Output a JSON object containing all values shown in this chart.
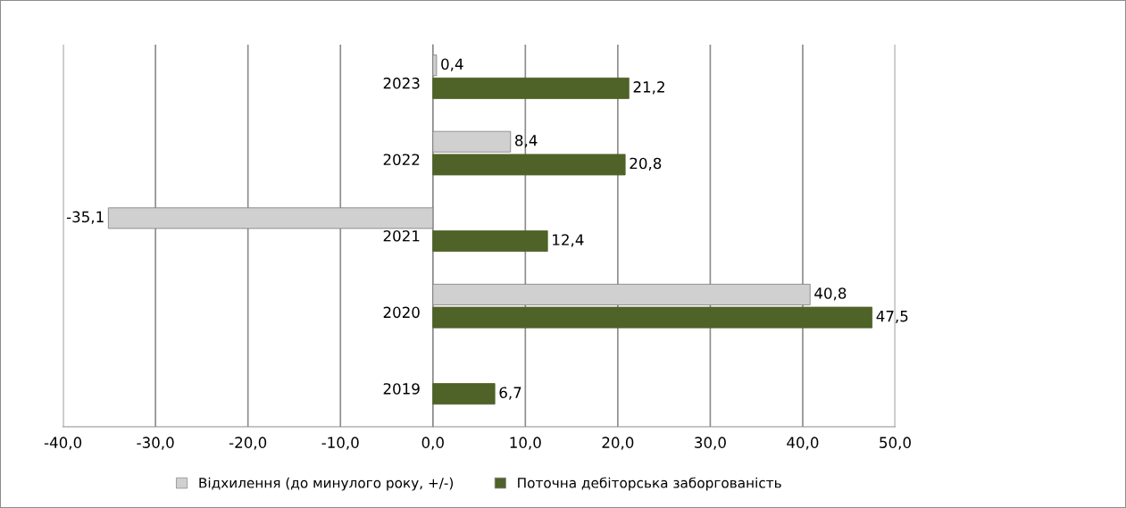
{
  "chart_data": {
    "type": "bar",
    "orientation": "horizontal",
    "categories": [
      "2023",
      "2022",
      "2021",
      "2020",
      "2019"
    ],
    "series": [
      {
        "name": "Відхилення (до минулого року, +/-)",
        "color": "#d0d0d0",
        "values": [
          0.4,
          8.4,
          -35.1,
          40.8,
          null
        ],
        "value_labels": [
          "0,4",
          "8,4",
          "-35,1",
          "40,8",
          null
        ]
      },
      {
        "name": "Поточна дебіторська заборгованість",
        "color": "#4f6228",
        "values": [
          21.2,
          20.8,
          12.4,
          47.5,
          6.7
        ],
        "value_labels": [
          "21,2",
          "20,8",
          "12,4",
          "47,5",
          "6,7"
        ]
      }
    ],
    "xlim": [
      -40,
      50
    ],
    "xticks": [
      {
        "value": -40,
        "label": "-40,0"
      },
      {
        "value": -30,
        "label": "-30,0"
      },
      {
        "value": -20,
        "label": "-20,0"
      },
      {
        "value": -10,
        "label": "-10,0"
      },
      {
        "value": 0,
        "label": "0,0"
      },
      {
        "value": 10,
        "label": "10,0"
      },
      {
        "value": 20,
        "label": "20,0"
      },
      {
        "value": 30,
        "label": "30,0"
      },
      {
        "value": 40,
        "label": "40,0"
      },
      {
        "value": 50,
        "label": "50,0"
      }
    ],
    "grid": "x",
    "legend": "bottom"
  }
}
